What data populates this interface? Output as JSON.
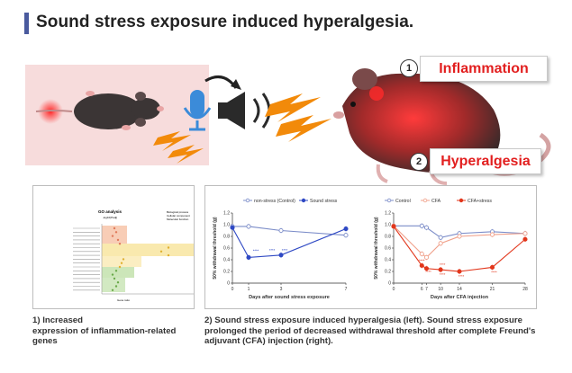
{
  "title": "Sound stress exposure induced hyperalgesia.",
  "callouts": {
    "inflammation": {
      "number": "1",
      "label": "Inflammation"
    },
    "hyperalgesia": {
      "number": "2",
      "label": "Hyperalgesia"
    }
  },
  "colors": {
    "title_bar": "#4a5a9e",
    "callout_text": "#e21f1f",
    "control": "#7b8cc8",
    "stress": "#2f49c4",
    "cfa": "#f0a08a",
    "cfa_stress": "#e2361b",
    "lightning": "#f28a0a"
  },
  "go_panel": {
    "title": "GO analysis",
    "legend": [
      "Biological process",
      "Cellular component",
      "Molecular function"
    ],
    "axis_label": "-log10(Padj)",
    "bottom_label": "Gene ratio"
  },
  "captions": {
    "left": [
      "1)  Increased",
      "expression of inflammation-related",
      "genes"
    ],
    "right": [
      "2) Sound stress exposure induced hyperalgesia (left). Sound stress exposure",
      "prolonged the period of decreased withdrawal threshold after complete Freund's",
      "adjuvant (CFA) injection (right)."
    ]
  },
  "chart_data": [
    {
      "type": "line",
      "legend": [
        "non-stress (Control)",
        "Sound stress"
      ],
      "ylabel": "50% withdrawal threshold (g)",
      "xlabel": "Days after sound stress exposure",
      "x": [
        0,
        1,
        3,
        7
      ],
      "xticks": [
        "0",
        "1",
        "3",
        "7"
      ],
      "ylim": [
        0,
        1.2
      ],
      "yticks": [
        "0",
        "0.2",
        "0.4",
        "0.6",
        "0.8",
        "1.0",
        "1.2"
      ],
      "series": [
        {
          "name": "non-stress (Control)",
          "values": [
            0.97,
            0.97,
            0.9,
            0.82
          ]
        },
        {
          "name": "Sound stress",
          "values": [
            0.95,
            0.44,
            0.48,
            0.93
          ]
        }
      ],
      "annotations": [
        "****",
        "****",
        "****"
      ]
    },
    {
      "type": "line",
      "legend": [
        "Control",
        "CFA",
        "CFA+stress"
      ],
      "ylabel": "50% withdrawal threshold (g)",
      "xlabel": "Days after CFA injection",
      "x": [
        0,
        6,
        7,
        10,
        14,
        21,
        28
      ],
      "xticks": [
        "0",
        "6",
        "7",
        "10",
        "14",
        "21",
        "28"
      ],
      "ylim": [
        0,
        1.2
      ],
      "yticks": [
        "0",
        "0.2",
        "0.4",
        "0.6",
        "0.8",
        "1.0",
        "1.2"
      ],
      "series": [
        {
          "name": "Control",
          "values": [
            0.98,
            0.98,
            0.95,
            0.78,
            0.85,
            0.88,
            0.85
          ]
        },
        {
          "name": "CFA",
          "values": [
            0.98,
            0.5,
            0.44,
            0.68,
            0.8,
            0.83,
            0.85
          ]
        },
        {
          "name": "CFA+stress",
          "values": [
            0.97,
            0.3,
            0.25,
            0.23,
            0.2,
            0.27,
            0.75
          ]
        }
      ],
      "annotations": [
        "****",
        "****",
        "****",
        "****",
        "****",
        "****"
      ]
    }
  ]
}
